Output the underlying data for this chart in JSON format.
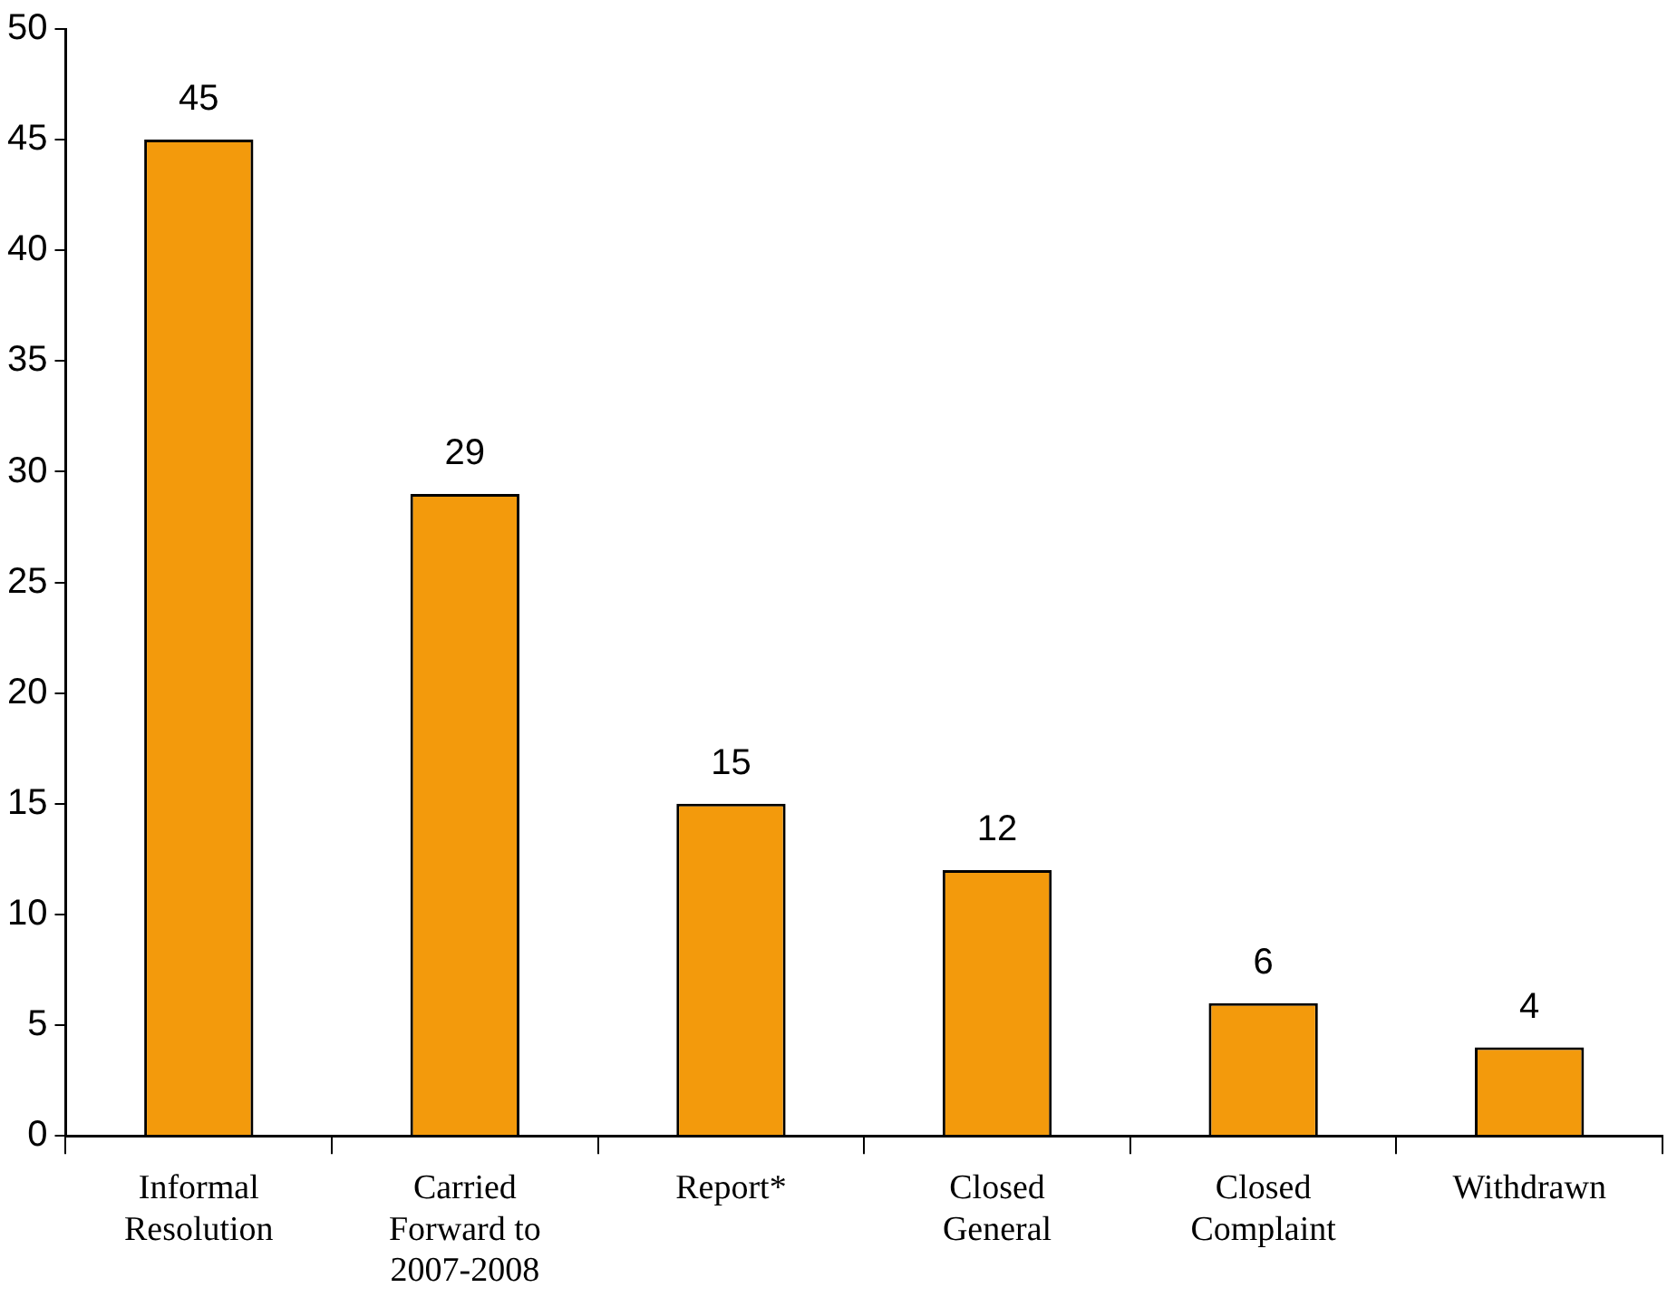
{
  "chart_data": {
    "type": "bar",
    "categories": [
      "Informal Resolution",
      "Carried Forward to 2007-2008",
      "Report*",
      "Closed General",
      "Closed Complaint",
      "Withdrawn"
    ],
    "values": [
      45,
      29,
      15,
      12,
      6,
      4
    ],
    "color": "#f39a0c",
    "ylim": [
      0,
      50
    ],
    "yticks": [
      0,
      5,
      10,
      15,
      20,
      25,
      30,
      35,
      40,
      45,
      50
    ],
    "grid": false,
    "data_labels": true
  }
}
